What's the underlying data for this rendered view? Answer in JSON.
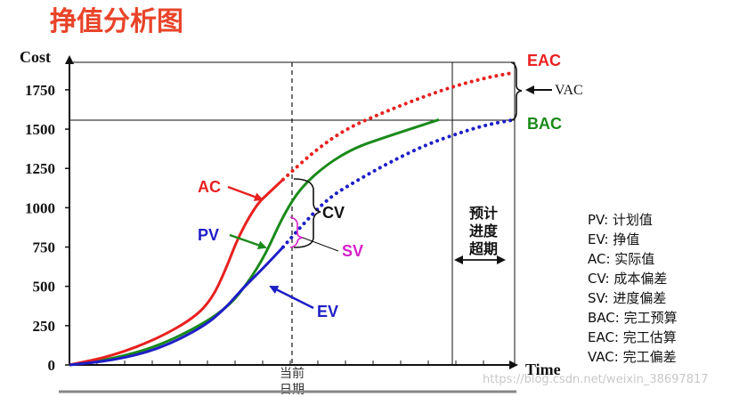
{
  "chart_data": {
    "type": "line",
    "title": "挣值分析图",
    "ylabel": "Cost",
    "xlabel": "Time",
    "yticks": [
      "0",
      "250",
      "500",
      "750",
      "1000",
      "1250",
      "1500",
      "1750"
    ],
    "ylim": [
      0,
      1925
    ],
    "xlim": [
      0,
      100
    ],
    "current_date_x": 48,
    "planned_finish_x": 83,
    "forecast_finish_x": 100,
    "series": [
      {
        "name": "PV",
        "color": "#1a8a1a",
        "style": "solid",
        "points": [
          [
            0,
            0
          ],
          [
            10,
            40
          ],
          [
            20,
            120
          ],
          [
            30,
            260
          ],
          [
            36,
            380
          ],
          [
            40,
            520
          ],
          [
            44,
            700
          ],
          [
            48,
            950
          ],
          [
            52,
            1130
          ],
          [
            58,
            1280
          ],
          [
            64,
            1380
          ],
          [
            70,
            1440
          ],
          [
            77,
            1505
          ],
          [
            83,
            1560
          ]
        ]
      },
      {
        "name": "AC",
        "color": "#e82020",
        "style": "solid",
        "points": [
          [
            0,
            0
          ],
          [
            10,
            60
          ],
          [
            20,
            170
          ],
          [
            28,
            300
          ],
          [
            32,
            420
          ],
          [
            35,
            600
          ],
          [
            38,
            820
          ],
          [
            42,
            1020
          ],
          [
            45,
            1100
          ],
          [
            48,
            1180
          ]
        ]
      },
      {
        "name": "AC-forecast",
        "color": "#e82020",
        "style": "dotted",
        "points": [
          [
            48,
            1180
          ],
          [
            55,
            1360
          ],
          [
            62,
            1500
          ],
          [
            70,
            1600
          ],
          [
            78,
            1690
          ],
          [
            86,
            1770
          ],
          [
            94,
            1830
          ],
          [
            100,
            1860
          ]
        ]
      },
      {
        "name": "EV",
        "color": "#1e1ec8",
        "style": "solid",
        "points": [
          [
            0,
            0
          ],
          [
            10,
            30
          ],
          [
            20,
            100
          ],
          [
            30,
            240
          ],
          [
            35,
            360
          ],
          [
            39,
            490
          ],
          [
            43,
            600
          ],
          [
            48,
            750
          ]
        ]
      },
      {
        "name": "EV-forecast",
        "color": "#1e1ec8",
        "style": "dotted",
        "points": [
          [
            48,
            750
          ],
          [
            52,
            880
          ],
          [
            58,
            1060
          ],
          [
            65,
            1180
          ],
          [
            72,
            1290
          ],
          [
            80,
            1400
          ],
          [
            88,
            1480
          ],
          [
            94,
            1530
          ],
          [
            100,
            1560
          ]
        ]
      }
    ],
    "annotations": {
      "eac": "EAC",
      "bac": "BAC",
      "vac": "VAC",
      "ac": "AC",
      "pv": "PV",
      "ev": "EV",
      "cv": "CV",
      "sv": "SV",
      "current_date": "当前日期",
      "schedule_overrun": "预计进度超期"
    },
    "legend_items": [
      "PV:  计划值",
      "EV:  挣值",
      "AC:  实际值",
      "CV:  成本偏差",
      "SV:  进度偏差",
      "BAC:  完工预算",
      "EAC:  完工估算",
      "VAC:  完工偏差"
    ]
  },
  "watermark": "https://blog.csdn.net/weixin_38697817"
}
